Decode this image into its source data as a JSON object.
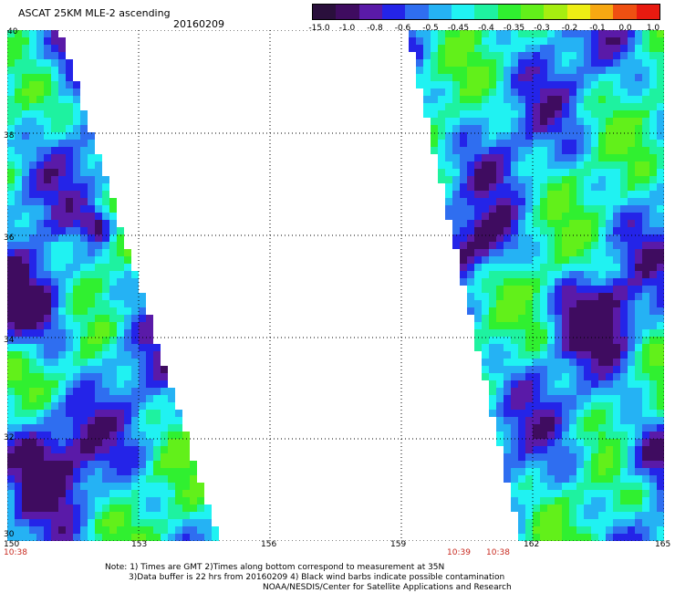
{
  "header": {
    "title": "ASCAT 25KM MLE-2 ascending",
    "date": "20160209"
  },
  "colorbar": {
    "labels": [
      "-15.0",
      "-1.0",
      "-0.8",
      "-0.6",
      "-0.5",
      "-0.45",
      "-0.4",
      "-0.35",
      "-0.3",
      "-0.2",
      "-0.1",
      "0.0",
      "1.0"
    ],
    "colors": [
      "#2a0f3c",
      "#3f0c60",
      "#5a1aa8",
      "#2424e8",
      "#2f6ef0",
      "#25b2f4",
      "#20f2f2",
      "#1ef2a0",
      "#30f030",
      "#62f01a",
      "#a6ee10",
      "#eeee14",
      "#f7a812",
      "#ef5012",
      "#e81a10"
    ]
  },
  "axes": {
    "x_labels": [
      "150",
      "153",
      "156",
      "159",
      "162",
      "165"
    ],
    "y_labels": [
      "40",
      "38",
      "36",
      "34",
      "32",
      "30"
    ]
  },
  "times": {
    "left": "10:38",
    "mid1": "10:39",
    "mid2": "10:38"
  },
  "notes": {
    "line1": "Note: 1) Times are GMT 2)Times along bottom correspond to measurement at 35N",
    "line2": "3)Data buffer is 22 hrs from 20160209 4) Black wind barbs indicate possible contamination",
    "line3": "NOAA/NESDIS/Center for Satellite Applications and Research"
  }
}
